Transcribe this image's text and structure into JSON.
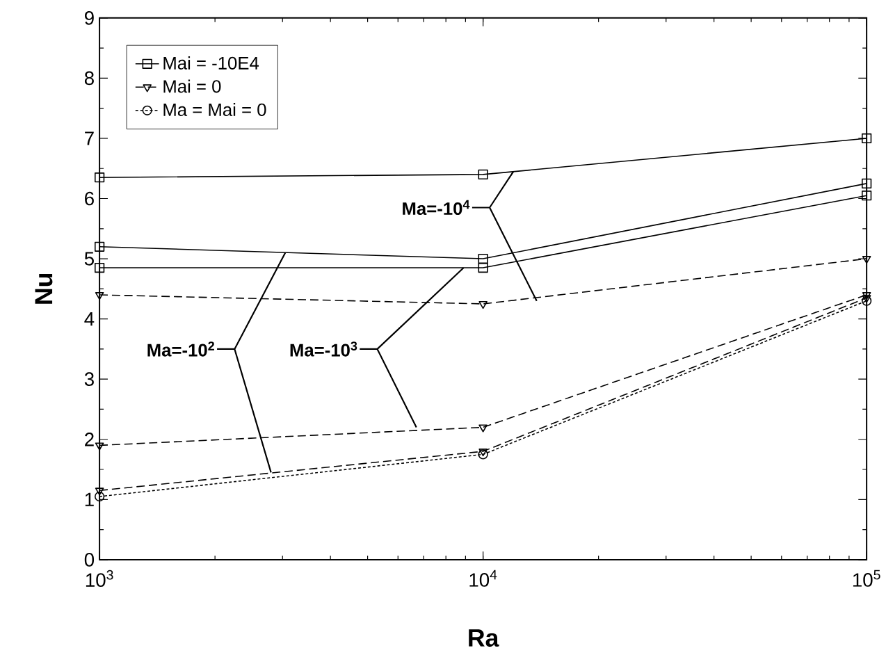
{
  "chart_data": {
    "type": "line",
    "xlabel": "Ra",
    "ylabel": "Nu",
    "log": "x",
    "x": [
      1000,
      10000,
      100000
    ],
    "xlim": [
      1000,
      100000
    ],
    "ylim": [
      0,
      9
    ],
    "xticks": [
      {
        "value": 1000,
        "label": "10$^{3}$"
      },
      {
        "value": 10000,
        "label": "10$^{4}$"
      },
      {
        "value": 100000,
        "label": "10$^{5}$"
      }
    ],
    "yticks": [
      0,
      1,
      2,
      3,
      4,
      5,
      6,
      7,
      8,
      9
    ],
    "grid": false,
    "legend": "top left",
    "series": [
      {
        "name": "Mai = -10E4",
        "color": "#000000",
        "marker": "square",
        "line_style": "solid",
        "values": [
          6.35,
          6.4,
          7.0
        ]
      },
      {
        "color": "#000000",
        "marker": "square",
        "line_style": "solid",
        "values": [
          5.2,
          5.0,
          6.25
        ]
      },
      {
        "color": "#000000",
        "marker": "square",
        "line_style": "solid",
        "values": [
          4.85,
          4.85,
          6.05
        ]
      },
      {
        "name": "Mai = 0",
        "color": "#000000",
        "marker": "triangle",
        "line_style": "dashed",
        "values": [
          4.4,
          4.25,
          5.0
        ]
      },
      {
        "color": "#000000",
        "marker": "triangle",
        "line_style": "dashed",
        "values": [
          1.9,
          2.2,
          4.4
        ]
      },
      {
        "color": "#000000",
        "marker": "triangle",
        "line_style": "dashed",
        "values": [
          1.15,
          1.8,
          4.35
        ]
      },
      {
        "name": "Ma = Mai = 0",
        "color": "#000000",
        "marker": "circle",
        "line_style": "dotted",
        "values": [
          1.05,
          1.75,
          4.3
        ]
      }
    ],
    "annotations": [
      {
        "text": "Ma=-10$^{4}$",
        "x": 12000,
        "y": 6.45
      },
      {
        "text": "Ma=-10$^{3}$",
        "x": 8900,
        "y": 4.85
      },
      {
        "text": "Ma=-10$^{2}$",
        "x": 3050,
        "y": 5.1
      }
    ]
  }
}
